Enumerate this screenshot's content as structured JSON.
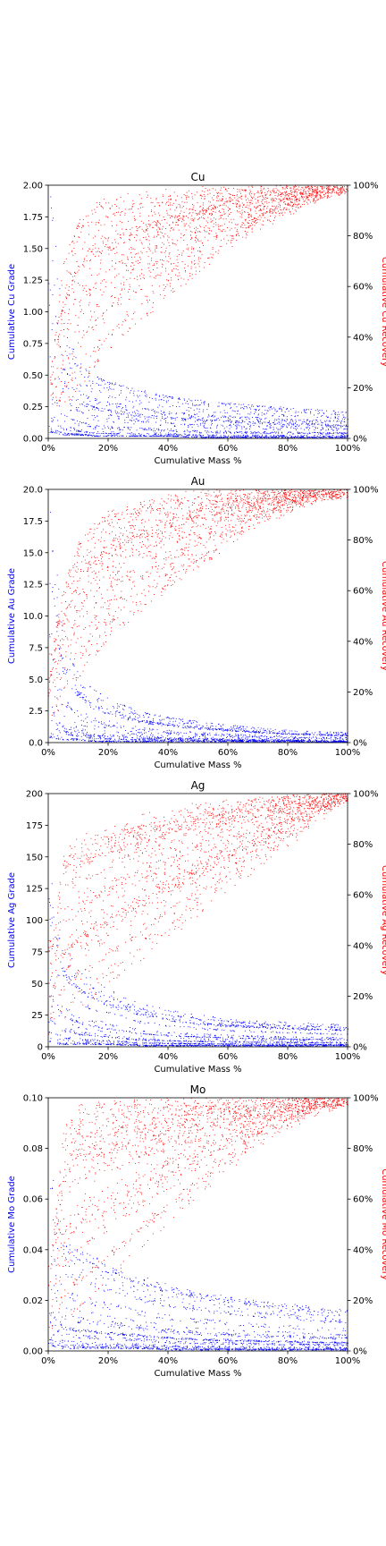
{
  "figure": {
    "background": "#ffffff"
  },
  "chart_data": [
    {
      "type": "scatter",
      "title": "Cu",
      "xlabel": "Cumulative Mass %",
      "ylabel": "Cumulative Cu Grade",
      "ylabel_right": "Cumulative Cu Recovery",
      "xlim": [
        0,
        100
      ],
      "ylim": [
        0,
        2.0
      ],
      "ylim_right": [
        0,
        100
      ],
      "xticks": [
        "0%",
        "20%",
        "40%",
        "60%",
        "80%",
        "100%"
      ],
      "yticks": [
        "0.00",
        "0.25",
        "0.50",
        "0.75",
        "1.00",
        "1.25",
        "1.50",
        "1.75",
        "2.00"
      ],
      "yticks_right": [
        "0%",
        "20%",
        "40%",
        "60%",
        "80%",
        "100%"
      ],
      "grid": false,
      "series": [
        {
          "axis": "left",
          "color": "#0000ff",
          "values": {
            "x": [
              1,
              5,
              10,
              15,
              20,
              30,
              40,
              50,
              60,
              70,
              80,
              90,
              100
            ],
            "y_low": [
              0.05,
              0.03,
              0.03,
              0.02,
              0.02,
              0.02,
              0.02,
              0.01,
              0.01,
              0.01,
              0.01,
              0.01,
              0.01
            ],
            "y_high": [
              1.9,
              0.9,
              0.6,
              0.5,
              0.45,
              0.38,
              0.33,
              0.3,
              0.28,
              0.26,
              0.24,
              0.23,
              0.21
            ]
          }
        },
        {
          "axis": "right",
          "color": "#ff0000",
          "values": {
            "x": [
              1,
              5,
              10,
              15,
              20,
              30,
              40,
              50,
              60,
              70,
              80,
              90,
              100
            ],
            "y_low": [
              1,
              5,
              12,
              20,
              27,
              40,
              52,
              63,
              73,
              82,
              89,
              95,
              100
            ],
            "y_high": [
              30,
              70,
              88,
              92,
              94,
              96,
              97,
              98,
              99,
              99,
              100,
              100,
              100
            ]
          }
        }
      ]
    },
    {
      "type": "scatter",
      "title": "Au",
      "xlabel": "Cumulative Mass %",
      "ylabel": "Cumulative Au Grade",
      "ylabel_right": "Cumulative Au Recovery",
      "xlim": [
        0,
        100
      ],
      "ylim": [
        0,
        20.0
      ],
      "ylim_right": [
        0,
        100
      ],
      "xticks": [
        "0%",
        "20%",
        "40%",
        "60%",
        "80%",
        "100%"
      ],
      "yticks": [
        "0.0",
        "2.5",
        "5.0",
        "7.5",
        "10.0",
        "12.5",
        "15.0",
        "17.5",
        "20.0"
      ],
      "yticks_right": [
        "0%",
        "20%",
        "40%",
        "60%",
        "80%",
        "100%"
      ],
      "grid": false,
      "series": [
        {
          "axis": "left",
          "color": "#0000ff",
          "values": {
            "x": [
              1,
              5,
              10,
              15,
              20,
              30,
              40,
              50,
              60,
              70,
              80,
              90,
              100
            ],
            "y_low": [
              0.3,
              0.2,
              0.2,
              0.1,
              0.1,
              0.1,
              0.1,
              0.1,
              0.1,
              0.1,
              0.1,
              0.05,
              0.05
            ],
            "y_high": [
              18,
              8,
              5.5,
              4.2,
              3.5,
              2.5,
              2.0,
              1.7,
              1.4,
              1.2,
              1.0,
              0.9,
              0.8
            ]
          }
        },
        {
          "axis": "right",
          "color": "#ff0000",
          "values": {
            "x": [
              1,
              5,
              10,
              15,
              20,
              30,
              40,
              50,
              60,
              70,
              80,
              90,
              100
            ],
            "y_low": [
              2,
              8,
              18,
              26,
              33,
              45,
              56,
              66,
              76,
              85,
              92,
              97,
              100
            ],
            "y_high": [
              35,
              60,
              78,
              85,
              89,
              93,
              96,
              98,
              99,
              100,
              100,
              100,
              100
            ]
          }
        }
      ]
    },
    {
      "type": "scatter",
      "title": "Ag",
      "xlabel": "Cumulative Mass %",
      "ylabel": "Cumulative Ag Grade",
      "ylabel_right": "Cumulative Ag Recovery",
      "xlim": [
        0,
        100
      ],
      "ylim": [
        0,
        200
      ],
      "ylim_right": [
        0,
        100
      ],
      "xticks": [
        "0%",
        "20%",
        "40%",
        "60%",
        "80%",
        "100%"
      ],
      "yticks": [
        "0",
        "25",
        "50",
        "75",
        "100",
        "125",
        "150",
        "175",
        "200"
      ],
      "yticks_right": [
        "0%",
        "20%",
        "40%",
        "60%",
        "80%",
        "100%"
      ],
      "grid": false,
      "series": [
        {
          "axis": "left",
          "color": "#0000ff",
          "values": {
            "x": [
              1,
              5,
              10,
              15,
              20,
              30,
              40,
              50,
              60,
              70,
              80,
              90,
              100
            ],
            "y_low": [
              3,
              2,
              2,
              2,
              2,
              1,
              1,
              1,
              1,
              1,
              1,
              1,
              1
            ],
            "y_high": [
              150,
              90,
              70,
              60,
              52,
              40,
              33,
              29,
              26,
              24,
              22,
              21,
              20
            ]
          }
        },
        {
          "axis": "right",
          "color": "#ff0000",
          "values": {
            "x": [
              1,
              5,
              10,
              15,
              20,
              30,
              40,
              50,
              60,
              70,
              80,
              90,
              100
            ],
            "y_low": [
              2,
              6,
              10,
              15,
              20,
              30,
              40,
              50,
              60,
              70,
              80,
              90,
              100
            ],
            "y_high": [
              45,
              80,
              86,
              88,
              90,
              93,
              95,
              97,
              98,
              99,
              100,
              100,
              100
            ]
          }
        }
      ]
    },
    {
      "type": "scatter",
      "title": "Mo",
      "xlabel": "Cumulative Mass %",
      "ylabel": "Cumulative Mo Grade",
      "ylabel_right": "Cumulative Mo Recovery",
      "xlim": [
        0,
        100
      ],
      "ylim": [
        0,
        0.1
      ],
      "ylim_right": [
        0,
        100
      ],
      "xticks": [
        "0%",
        "20%",
        "40%",
        "60%",
        "80%",
        "100%"
      ],
      "yticks": [
        "0.00",
        "0.02",
        "0.04",
        "0.06",
        "0.08",
        "0.10"
      ],
      "yticks_right": [
        "0%",
        "20%",
        "40%",
        "60%",
        "80%",
        "100%"
      ],
      "grid": false,
      "series": [
        {
          "axis": "left",
          "color": "#0000ff",
          "values": {
            "x": [
              1,
              5,
              10,
              15,
              20,
              30,
              40,
              50,
              60,
              70,
              80,
              90,
              100
            ],
            "y_low": [
              0.002,
              0.001,
              0.001,
              0.001,
              0.001,
              0.001,
              0.0005,
              0.0005,
              0.0005,
              0.0005,
              0.0005,
              0.0005,
              0.0005
            ],
            "y_high": [
              0.08,
              0.05,
              0.045,
              0.042,
              0.038,
              0.033,
              0.029,
              0.026,
              0.024,
              0.022,
              0.021,
              0.019,
              0.018
            ]
          }
        },
        {
          "axis": "right",
          "color": "#ff0000",
          "values": {
            "x": [
              1,
              5,
              10,
              15,
              20,
              30,
              40,
              50,
              60,
              70,
              80,
              90,
              100
            ],
            "y_low": [
              1,
              4,
              9,
              15,
              22,
              34,
              46,
              58,
              69,
              79,
              88,
              95,
              100
            ],
            "y_high": [
              40,
              90,
              99,
              100,
              100,
              100,
              100,
              100,
              100,
              100,
              100,
              100,
              100
            ]
          }
        }
      ]
    }
  ]
}
